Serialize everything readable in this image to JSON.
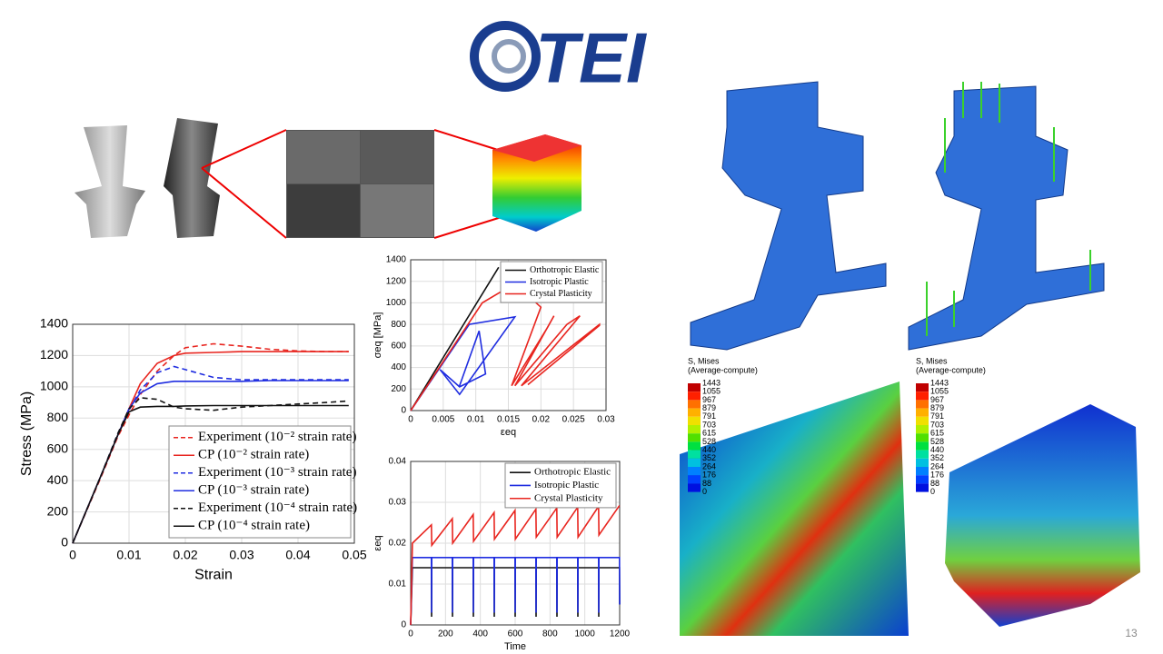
{
  "logo": "TEI",
  "slide_number": "13",
  "chart_data": [
    {
      "type": "line",
      "xlabel": "Strain",
      "ylabel": "Stress (MPa)",
      "xlim": [
        0,
        0.05
      ],
      "xticks": [
        0,
        0.01,
        0.02,
        0.03,
        0.04,
        0.05
      ],
      "ylim": [
        0,
        1400
      ],
      "yticks": [
        0,
        200,
        400,
        600,
        800,
        1000,
        1200,
        1400
      ],
      "grid": true,
      "legend": "lower right",
      "x": [
        0,
        0.005,
        0.008,
        0.01,
        0.012,
        0.015,
        0.018,
        0.02,
        0.025,
        0.03,
        0.035,
        0.04,
        0.045,
        0.049
      ],
      "series": [
        {
          "name": "Experiment (10⁻² strain rate)",
          "color": "#e8251f",
          "dashed": true,
          "values": [
            0,
            420,
            680,
            820,
            950,
            1100,
            1200,
            1250,
            1275,
            1260,
            1240,
            1230,
            1225,
            1225
          ]
        },
        {
          "name": "CP (10⁻² strain rate)",
          "color": "#e8251f",
          "dashed": false,
          "values": [
            0,
            430,
            690,
            860,
            1020,
            1150,
            1200,
            1215,
            1220,
            1225,
            1225,
            1225,
            1225,
            1225
          ]
        },
        {
          "name": "Experiment (10⁻³ strain rate)",
          "color": "#1f2de0",
          "dashed": true,
          "values": [
            0,
            430,
            700,
            850,
            980,
            1090,
            1130,
            1110,
            1060,
            1045,
            1045,
            1045,
            1045,
            1045
          ]
        },
        {
          "name": "CP (10⁻³ strain rate)",
          "color": "#1f2de0",
          "dashed": false,
          "values": [
            0,
            430,
            690,
            860,
            960,
            1020,
            1035,
            1035,
            1035,
            1035,
            1040,
            1040,
            1040,
            1040
          ]
        },
        {
          "name": "Experiment (10⁻⁴ strain rate)",
          "color": "#111111",
          "dashed": true,
          "values": [
            0,
            430,
            700,
            860,
            930,
            920,
            870,
            860,
            850,
            870,
            880,
            890,
            900,
            910
          ]
        },
        {
          "name": "CP (10⁻⁴ strain rate)",
          "color": "#111111",
          "dashed": false,
          "values": [
            0,
            430,
            690,
            840,
            870,
            875,
            875,
            878,
            880,
            880,
            880,
            880,
            880,
            880
          ]
        }
      ]
    },
    {
      "type": "line",
      "xlabel": "εeq",
      "ylabel": "σeq [MPa]",
      "xlim": [
        0,
        0.03
      ],
      "xticks": [
        0,
        0.005,
        0.01,
        0.015,
        0.02,
        0.025,
        0.03
      ],
      "ylim": [
        0,
        1400
      ],
      "yticks": [
        0,
        200,
        400,
        600,
        800,
        1000,
        1200,
        1400
      ],
      "grid": true,
      "legend": "upper right",
      "series": [
        {
          "name": "Orthotropic Elastic",
          "color": "#111111",
          "dashed": false,
          "x": [
            0,
            0.0135,
            0
          ],
          "values": [
            0,
            1330,
            0
          ]
        },
        {
          "name": "Isotropic Plastic",
          "color": "#1f2de0",
          "dashed": false,
          "x": [
            0,
            0.009,
            0.016,
            0.0075,
            0.0045,
            0.0075,
            0.0115,
            0.0105,
            0.0075
          ],
          "values": [
            0,
            800,
            870,
            150,
            380,
            220,
            340,
            740,
            230
          ]
        },
        {
          "name": "Crystal Plasticity",
          "color": "#e8251f",
          "dashed": false,
          "x": [
            0,
            0.011,
            0.016,
            0.02,
            0.0155,
            0.021,
            0.022,
            0.016,
            0.024,
            0.026,
            0.017,
            0.029,
            0.029,
            0.018
          ],
          "values": [
            0,
            1000,
            1180,
            960,
            230,
            770,
            880,
            230,
            800,
            880,
            230,
            800,
            790,
            240
          ]
        }
      ]
    },
    {
      "type": "line",
      "xlabel": "Time",
      "ylabel": "εeq",
      "xlim": [
        0,
        1200
      ],
      "xticks": [
        0,
        200,
        400,
        600,
        800,
        1000,
        1200
      ],
      "ylim": [
        0,
        0.04
      ],
      "yticks": [
        0,
        0.01,
        0.02,
        0.03,
        0.04
      ],
      "grid": true,
      "legend": "upper right",
      "series": [
        {
          "name": "Orthotropic Elastic",
          "color": "#111111",
          "dashed": false,
          "x": [
            0,
            10,
            119,
            120,
            121,
            239,
            240,
            241,
            359,
            360,
            361,
            479,
            480,
            481,
            599,
            600,
            601,
            719,
            720,
            721,
            839,
            840,
            841,
            959,
            960,
            961,
            1079,
            1080,
            1081,
            1199,
            1200
          ],
          "values": [
            0,
            0.014,
            0.014,
            0.002,
            0.014,
            0.014,
            0.002,
            0.014,
            0.014,
            0.002,
            0.014,
            0.014,
            0.002,
            0.014,
            0.014,
            0.002,
            0.014,
            0.014,
            0.002,
            0.014,
            0.014,
            0.002,
            0.014,
            0.014,
            0.002,
            0.014,
            0.014,
            0.002,
            0.014,
            0.014,
            0.005
          ]
        },
        {
          "name": "Isotropic Plastic",
          "color": "#1f2de0",
          "dashed": false,
          "x": [
            0,
            10,
            119,
            120,
            121,
            239,
            240,
            241,
            359,
            360,
            361,
            479,
            480,
            481,
            599,
            600,
            601,
            719,
            720,
            721,
            839,
            840,
            841,
            959,
            960,
            961,
            1079,
            1080,
            1081,
            1199,
            1200
          ],
          "values": [
            0,
            0.0165,
            0.0165,
            0.003,
            0.0165,
            0.0165,
            0.003,
            0.0165,
            0.0165,
            0.003,
            0.0165,
            0.0165,
            0.003,
            0.0165,
            0.0165,
            0.003,
            0.0165,
            0.0165,
            0.003,
            0.0165,
            0.0165,
            0.003,
            0.0165,
            0.0165,
            0.003,
            0.0165,
            0.0165,
            0.003,
            0.0165,
            0.0165,
            0.005
          ]
        },
        {
          "name": "Crystal Plasticity",
          "color": "#e8251f",
          "dashed": false,
          "x": [
            0,
            10,
            119,
            121,
            239,
            241,
            359,
            361,
            479,
            481,
            599,
            601,
            719,
            721,
            839,
            841,
            959,
            961,
            1079,
            1081,
            1199
          ],
          "values": [
            0,
            0.02,
            0.0245,
            0.0195,
            0.026,
            0.02,
            0.027,
            0.0205,
            0.0275,
            0.021,
            0.028,
            0.021,
            0.0283,
            0.0215,
            0.0286,
            0.0215,
            0.0288,
            0.0215,
            0.029,
            0.022,
            0.0292
          ]
        }
      ]
    }
  ],
  "contour_legends": [
    {
      "title": "S, Mises",
      "subtitle": "(Average-compute)",
      "values": [
        "1443",
        "1055",
        "967",
        "879",
        "791",
        "703",
        "615",
        "528",
        "440",
        "352",
        "264",
        "176",
        "88",
        "0"
      ]
    },
    {
      "title": "S, Mises",
      "subtitle": "(Average-compute)",
      "values": [
        "1443",
        "1055",
        "967",
        "879",
        "791",
        "703",
        "615",
        "528",
        "440",
        "352",
        "264",
        "176",
        "88",
        "0"
      ]
    }
  ]
}
